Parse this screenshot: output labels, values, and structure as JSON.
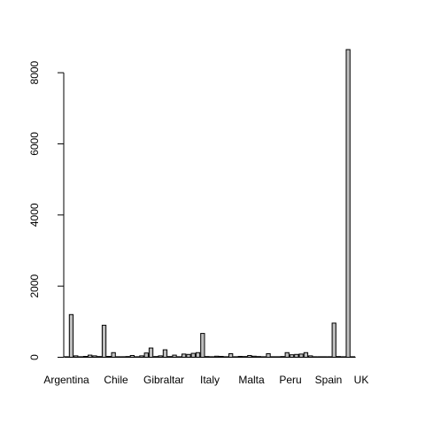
{
  "chart_data": {
    "type": "bar",
    "title": "",
    "xlabel": "",
    "ylabel": "",
    "ylim": [
      0,
      8700
    ],
    "y_ticks": [
      0,
      2000,
      4000,
      6000,
      8000
    ],
    "grid": false,
    "legend": "none",
    "x_labels_shown": [
      "Argentina",
      "Chile",
      "Gibraltar",
      "Italy",
      "Malta",
      "Peru",
      "Spain",
      "UK"
    ],
    "bar_fill": "#bebebe",
    "values": [
      10,
      1200,
      40,
      5,
      25,
      60,
      40,
      20,
      900,
      25,
      130,
      15,
      15,
      20,
      50,
      10,
      40,
      120,
      260,
      20,
      40,
      210,
      20,
      60,
      15,
      90,
      80,
      110,
      130,
      670,
      20,
      15,
      30,
      25,
      15,
      100,
      15,
      25,
      20,
      50,
      30,
      20,
      10,
      100,
      10,
      10,
      20,
      130,
      70,
      80,
      90,
      130,
      40,
      10,
      5,
      5,
      5,
      960,
      20,
      15,
      8650,
      5
    ]
  }
}
